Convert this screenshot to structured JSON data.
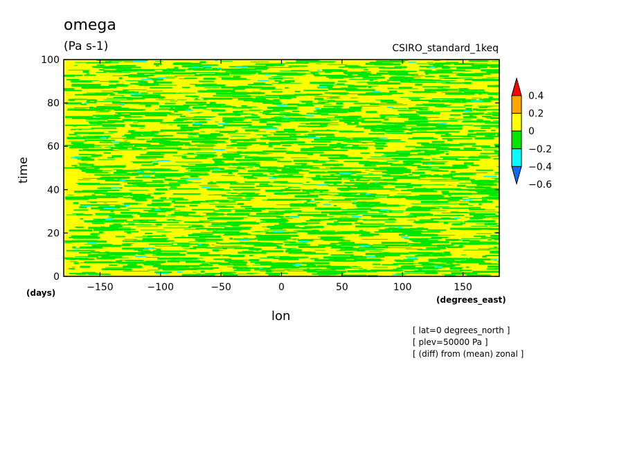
{
  "header": {
    "title": "omega",
    "units": "(Pa s-1)",
    "run_name": "CSIRO_standard_1keq"
  },
  "notes": [
    "[ lat=0 degrees_north ]",
    "[ plev=50000 Pa ]",
    "[ (diff) from (mean) zonal ]"
  ],
  "chart_data": {
    "type": "heatmap",
    "title": "omega",
    "units": "(Pa s-1)",
    "xlabel": "lon",
    "xunits": "(degrees_east)",
    "ylabel": "time",
    "yunits": "(days)",
    "xlim": [
      -180,
      180
    ],
    "ylim": [
      0,
      100
    ],
    "x_ticks": [
      -150,
      -100,
      -50,
      0,
      50,
      100,
      150
    ],
    "y_ticks": [
      0,
      20,
      40,
      60,
      80,
      100
    ],
    "x_tick_labels": [
      "−150",
      "−100",
      "−50",
      "0",
      "50",
      "100",
      "150"
    ],
    "y_tick_labels": [
      "0",
      "20",
      "40",
      "60",
      "80",
      "100"
    ],
    "colorbar": {
      "levels": [
        -0.6,
        -0.4,
        -0.2,
        0,
        0.2,
        0.4
      ],
      "labels": [
        "0.4",
        "0.2",
        "0",
        "−0.2",
        "−0.4",
        "−0.6"
      ],
      "colors": [
        "#0a6cf0",
        "#00ffff",
        "#00e600",
        "#ffff00",
        "#ffa500",
        "#ff0000"
      ]
    },
    "dominant_fill": "#ffff00"
  }
}
